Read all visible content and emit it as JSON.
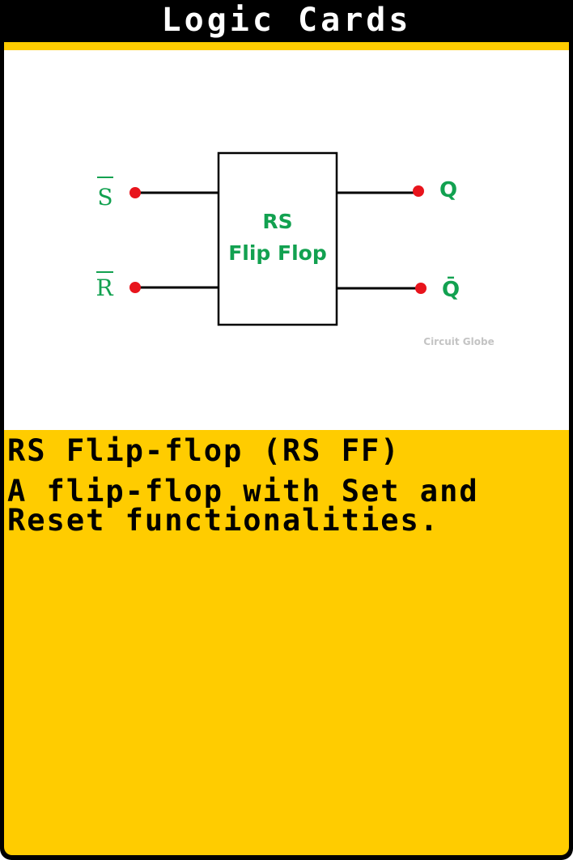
{
  "card": {
    "title": "Logic Cards",
    "heading": "RS Flip-flop (RS FF)",
    "description": "A flip-flop with Set and Reset functionalities."
  },
  "diagram": {
    "block_label_line1": "RS",
    "block_label_line2": "Flip Flop",
    "input_s_label": "S",
    "input_r_label": "R",
    "output_q_label": "Q",
    "output_qbar_label": "Q̄",
    "watermark": "Circuit Globe"
  },
  "colors": {
    "card_frame": "#000000",
    "card_yellow": "#ffcc00",
    "label_green": "#12a150",
    "terminal_red": "#e8141c"
  }
}
